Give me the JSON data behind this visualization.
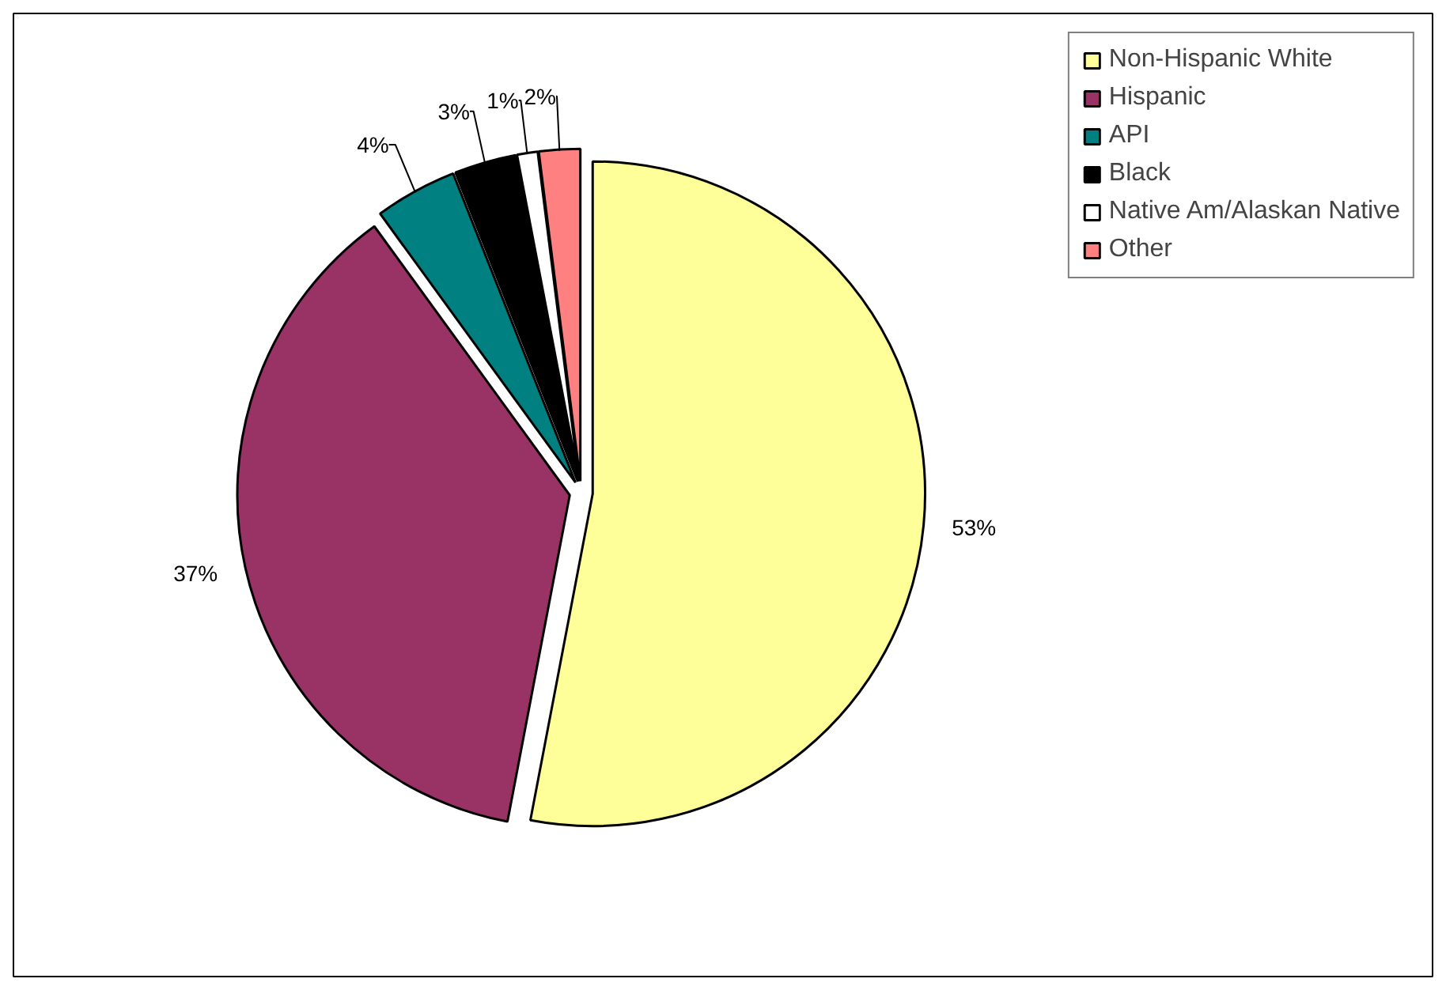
{
  "chart_data": {
    "type": "pie",
    "categories": [
      "Non-Hispanic White",
      "Hispanic",
      "API",
      "Black",
      "Native Am/Alaskan Native",
      "Other"
    ],
    "values": [
      53,
      37,
      4,
      3,
      1,
      2
    ],
    "colors": [
      "#ffff99",
      "#993366",
      "#008080",
      "#000000",
      "#ffffff",
      "#ff8080"
    ],
    "value_labels": [
      "53%",
      "37%",
      "4%",
      "3%",
      "1%",
      "2%"
    ],
    "legend": "top right"
  }
}
